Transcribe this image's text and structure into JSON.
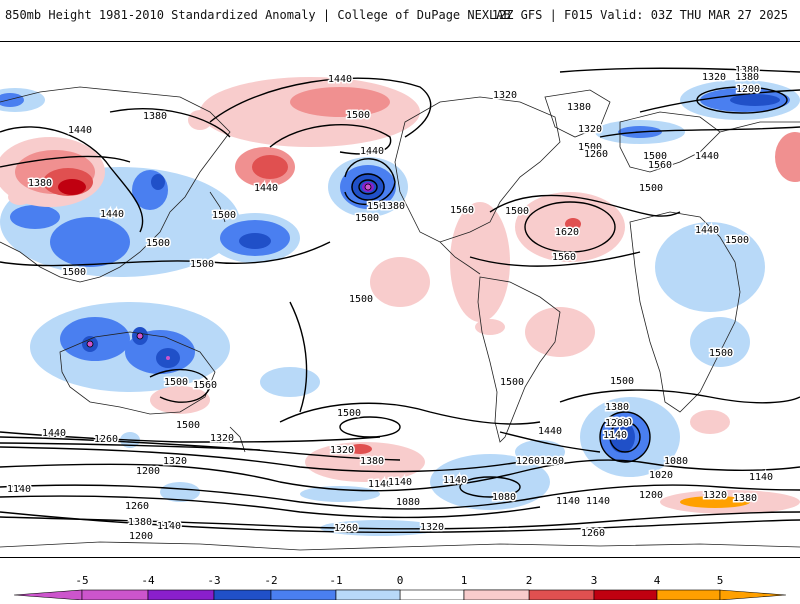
{
  "header": {
    "left": "850mb Height 1981-2010 Standardized Anomaly | College of DuPage NEXLAB",
    "right": "12Z GFS | F015 Valid: 03Z THU MAR 27 2025"
  },
  "colors": {
    "n5": "#cc55cc",
    "n4": "#8a1fcc",
    "n3": "#2050c8",
    "n2": "#4a7ff0",
    "n1": "#b8d9f8",
    "p1": "#f8cccc",
    "p2": "#f09090",
    "p3": "#e05050",
    "p4": "#c00010",
    "p5": "#ffa000"
  },
  "colorbar": {
    "ticks": [
      "-5",
      "-4",
      "-3",
      "-2",
      "-1",
      "0",
      "1",
      "2",
      "3",
      "4",
      "5"
    ]
  },
  "contour_labels": [
    {
      "t": "1440"
    },
    {
      "t": "1500"
    },
    {
      "t": "1320"
    },
    {
      "t": "1380"
    },
    {
      "t": "1320"
    },
    {
      "t": "1380"
    },
    {
      "t": "1200"
    },
    {
      "t": "1380"
    },
    {
      "t": "1440"
    },
    {
      "t": "1380"
    },
    {
      "t": "1500"
    },
    {
      "t": "1560"
    },
    {
      "t": "1440"
    },
    {
      "t": "1500"
    },
    {
      "t": "1380"
    },
    {
      "t": "1440"
    },
    {
      "t": "1500"
    },
    {
      "t": "1500"
    },
    {
      "t": "1440"
    },
    {
      "t": "1500"
    },
    {
      "t": "1500"
    },
    {
      "t": "1380"
    },
    {
      "t": "1500"
    },
    {
      "t": "1560"
    },
    {
      "t": "1500"
    },
    {
      "t": "1620"
    },
    {
      "t": "1560"
    },
    {
      "t": "1500"
    },
    {
      "t": "1440"
    },
    {
      "t": "1500"
    },
    {
      "t": "1320"
    },
    {
      "t": "1260"
    },
    {
      "t": "1440"
    },
    {
      "t": "1500"
    },
    {
      "t": "1500"
    },
    {
      "t": "1500"
    },
    {
      "t": "1500"
    },
    {
      "t": "1560"
    },
    {
      "t": "1500"
    },
    {
      "t": "1500"
    },
    {
      "t": "1500"
    },
    {
      "t": "1500"
    },
    {
      "t": "1380"
    },
    {
      "t": "1320"
    },
    {
      "t": "1440"
    },
    {
      "t": "1260"
    },
    {
      "t": "1320"
    },
    {
      "t": "1440"
    },
    {
      "t": "1380"
    },
    {
      "t": "1260"
    },
    {
      "t": "1320"
    },
    {
      "t": "1200"
    },
    {
      "t": "1140"
    },
    {
      "t": "1320"
    },
    {
      "t": "1200"
    },
    {
      "t": "1140"
    },
    {
      "t": "1140"
    },
    {
      "t": "1080"
    },
    {
      "t": "1260"
    },
    {
      "t": "1140"
    },
    {
      "t": "1080"
    },
    {
      "t": "1140"
    },
    {
      "t": "1140"
    },
    {
      "t": "1140"
    },
    {
      "t": "1020"
    },
    {
      "t": "1080"
    },
    {
      "t": "1140"
    },
    {
      "t": "1200"
    },
    {
      "t": "1320"
    },
    {
      "t": "1380"
    },
    {
      "t": "1260"
    },
    {
      "t": "1380"
    },
    {
      "t": "1140"
    },
    {
      "t": "1200"
    },
    {
      "t": "1260"
    },
    {
      "t": "1320"
    },
    {
      "t": "1260"
    }
  ]
}
